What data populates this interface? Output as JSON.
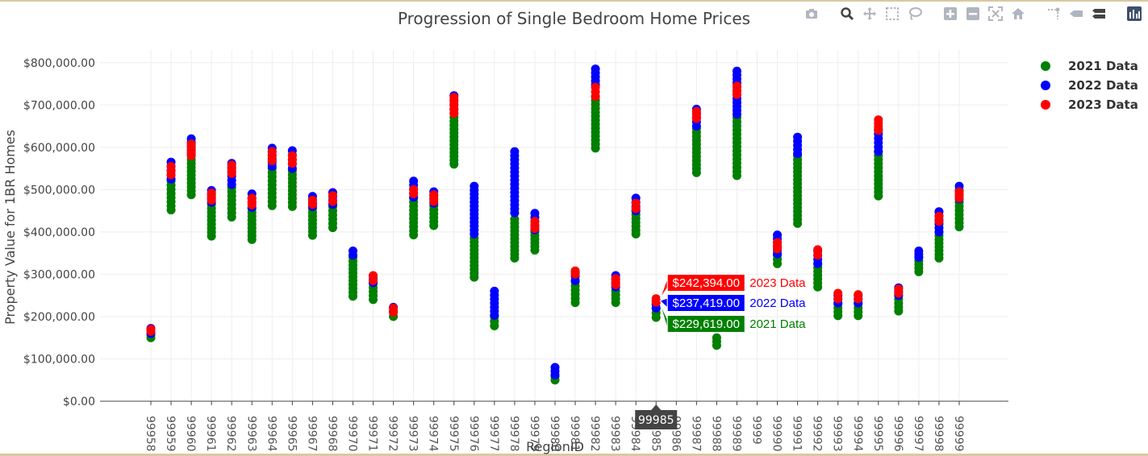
{
  "chart_data": {
    "type": "scatter",
    "title": "Progression of Single Bedroom Home Prices",
    "xlabel": "RegionID",
    "ylabel": "Property Value for 1BR Homes",
    "ylim": [
      0,
      830000
    ],
    "yticks": [
      0,
      100000,
      200000,
      300000,
      400000,
      500000,
      600000,
      700000,
      800000
    ],
    "ytick_labels": [
      "$0.00",
      "$100,000.00",
      "$200,000.00",
      "$300,000.00",
      "$400,000.00",
      "$500,000.00",
      "$600,000.00",
      "$700,000.00",
      "$800,000.00"
    ],
    "categories": [
      "99958",
      "99959",
      "99960",
      "99961",
      "99962",
      "99963",
      "99964",
      "99965",
      "99967",
      "99968",
      "99970",
      "99971",
      "99972",
      "99973",
      "99974",
      "99975",
      "99976",
      "99977",
      "99978",
      "99979",
      "99980",
      "99981",
      "99982",
      "99983",
      "99984",
      "99985",
      "99986",
      "99987",
      "99988",
      "99989",
      "9999",
      "99990",
      "99991",
      "99992",
      "99993",
      "99994",
      "99995",
      "99996",
      "99997",
      "99998",
      "99999"
    ],
    "grid": true,
    "legend_position": "top-right",
    "series": [
      {
        "name": "2021 Data",
        "color": "#008000",
        "ranges": [
          [
            150000,
            158000
          ],
          [
            452000,
            520000
          ],
          [
            488000,
            580000
          ],
          [
            390000,
            465000
          ],
          [
            435000,
            505000
          ],
          [
            382000,
            455000
          ],
          [
            462000,
            550000
          ],
          [
            460000,
            545000
          ],
          [
            392000,
            455000
          ],
          [
            410000,
            460000
          ],
          [
            248000,
            340000
          ],
          [
            240000,
            278000
          ],
          [
            200000,
            212000
          ],
          [
            393000,
            480000
          ],
          [
            415000,
            462000
          ],
          [
            560000,
            680000
          ],
          [
            293000,
            385000
          ],
          [
            178000,
            200000
          ],
          [
            338000,
            430000
          ],
          [
            357000,
            400000
          ],
          [
            50000,
            58000
          ],
          [
            233000,
            282000
          ],
          [
            598000,
            720000
          ],
          [
            233000,
            260000
          ],
          [
            395000,
            450000
          ],
          [
            198000,
            229619
          ],
          [
            0,
            0
          ],
          [
            540000,
            645000
          ],
          [
            132000,
            150000
          ],
          [
            533000,
            670000
          ],
          [
            0,
            0
          ],
          [
            325000,
            345000
          ],
          [
            420000,
            580000
          ],
          [
            270000,
            325000
          ],
          [
            202000,
            230000
          ],
          [
            202000,
            230000
          ],
          [
            485000,
            590000
          ],
          [
            213000,
            250000
          ],
          [
            306000,
            340000
          ],
          [
            338000,
            400000
          ],
          [
            412000,
            480000
          ]
        ]
      },
      {
        "name": "2022 Data",
        "color": "#0000ff",
        "ranges": [
          [
            160000,
            172000
          ],
          [
            525000,
            565000
          ],
          [
            585000,
            620000
          ],
          [
            470000,
            498000
          ],
          [
            512000,
            562000
          ],
          [
            458000,
            490000
          ],
          [
            555000,
            598000
          ],
          [
            550000,
            592000
          ],
          [
            460000,
            484000
          ],
          [
            465000,
            493000
          ],
          [
            345000,
            355000
          ],
          [
            280000,
            296000
          ],
          [
            212000,
            222000
          ],
          [
            482000,
            520000
          ],
          [
            468000,
            495000
          ],
          [
            690000,
            722000
          ],
          [
            395000,
            508000
          ],
          [
            203000,
            260000
          ],
          [
            445000,
            590000
          ],
          [
            405000,
            444000
          ],
          [
            62000,
            80000
          ],
          [
            285000,
            305000
          ],
          [
            748000,
            785000
          ],
          [
            270000,
            297000
          ],
          [
            450000,
            480000
          ],
          [
            220000,
            237419
          ],
          [
            0,
            0
          ],
          [
            650000,
            690000
          ],
          [
            0,
            0
          ],
          [
            678000,
            780000
          ],
          [
            0,
            0
          ],
          [
            348000,
            393000
          ],
          [
            585000,
            624000
          ],
          [
            325000,
            355000
          ],
          [
            232000,
            250000
          ],
          [
            232000,
            250000
          ],
          [
            590000,
            642000
          ],
          [
            250000,
            268000
          ],
          [
            340000,
            355000
          ],
          [
            400000,
            448000
          ],
          [
            478000,
            508000
          ]
        ]
      },
      {
        "name": "2023 Data",
        "color": "#ff0000",
        "ranges": [
          [
            165000,
            170000
          ],
          [
            535000,
            555000
          ],
          [
            580000,
            608000
          ],
          [
            475000,
            492000
          ],
          [
            538000,
            558000
          ],
          [
            464000,
            480000
          ],
          [
            568000,
            590000
          ],
          [
            562000,
            580000
          ],
          [
            465000,
            475000
          ],
          [
            472000,
            486000
          ],
          [
            0,
            0
          ],
          [
            285000,
            297000
          ],
          [
            210000,
            220000
          ],
          [
            490000,
            500000
          ],
          [
            472000,
            488000
          ],
          [
            680000,
            718000
          ],
          [
            0,
            0
          ],
          [
            0,
            0
          ],
          [
            0,
            0
          ],
          [
            408000,
            425000
          ],
          [
            0,
            0
          ],
          [
            300000,
            308000
          ],
          [
            720000,
            742000
          ],
          [
            275000,
            290000
          ],
          [
            455000,
            468000
          ],
          [
            234000,
            242394
          ],
          [
            0,
            0
          ],
          [
            668000,
            685000
          ],
          [
            0,
            0
          ],
          [
            725000,
            745000
          ],
          [
            0,
            0
          ],
          [
            360000,
            375000
          ],
          [
            0,
            0
          ],
          [
            345000,
            358000
          ],
          [
            242000,
            255000
          ],
          [
            242000,
            252000
          ],
          [
            640000,
            665000
          ],
          [
            255000,
            265000
          ],
          [
            0,
            0
          ],
          [
            425000,
            437000
          ],
          [
            480000,
            495000
          ]
        ]
      }
    ],
    "hover": {
      "x_label": "99985",
      "labels": [
        {
          "value": "$242,394.00",
          "name": "2023 Data",
          "color": "#ff0000",
          "y": 242394
        },
        {
          "value": "$237,419.00",
          "name": "2022 Data",
          "color": "#0000ff",
          "y": 237419
        },
        {
          "value": "$229,619.00",
          "name": "2021 Data",
          "color": "#008000",
          "y": 229619
        }
      ]
    }
  },
  "modebar": {
    "icons": [
      "camera-icon",
      "zoom-icon",
      "pan-icon",
      "box-select-icon",
      "lasso-icon",
      "zoom-in-icon",
      "zoom-out-icon",
      "autoscale-icon",
      "reset-axes-icon",
      "spike-lines-icon",
      "hover-closest-icon",
      "hover-compare-icon",
      "plotly-logo-icon"
    ]
  }
}
